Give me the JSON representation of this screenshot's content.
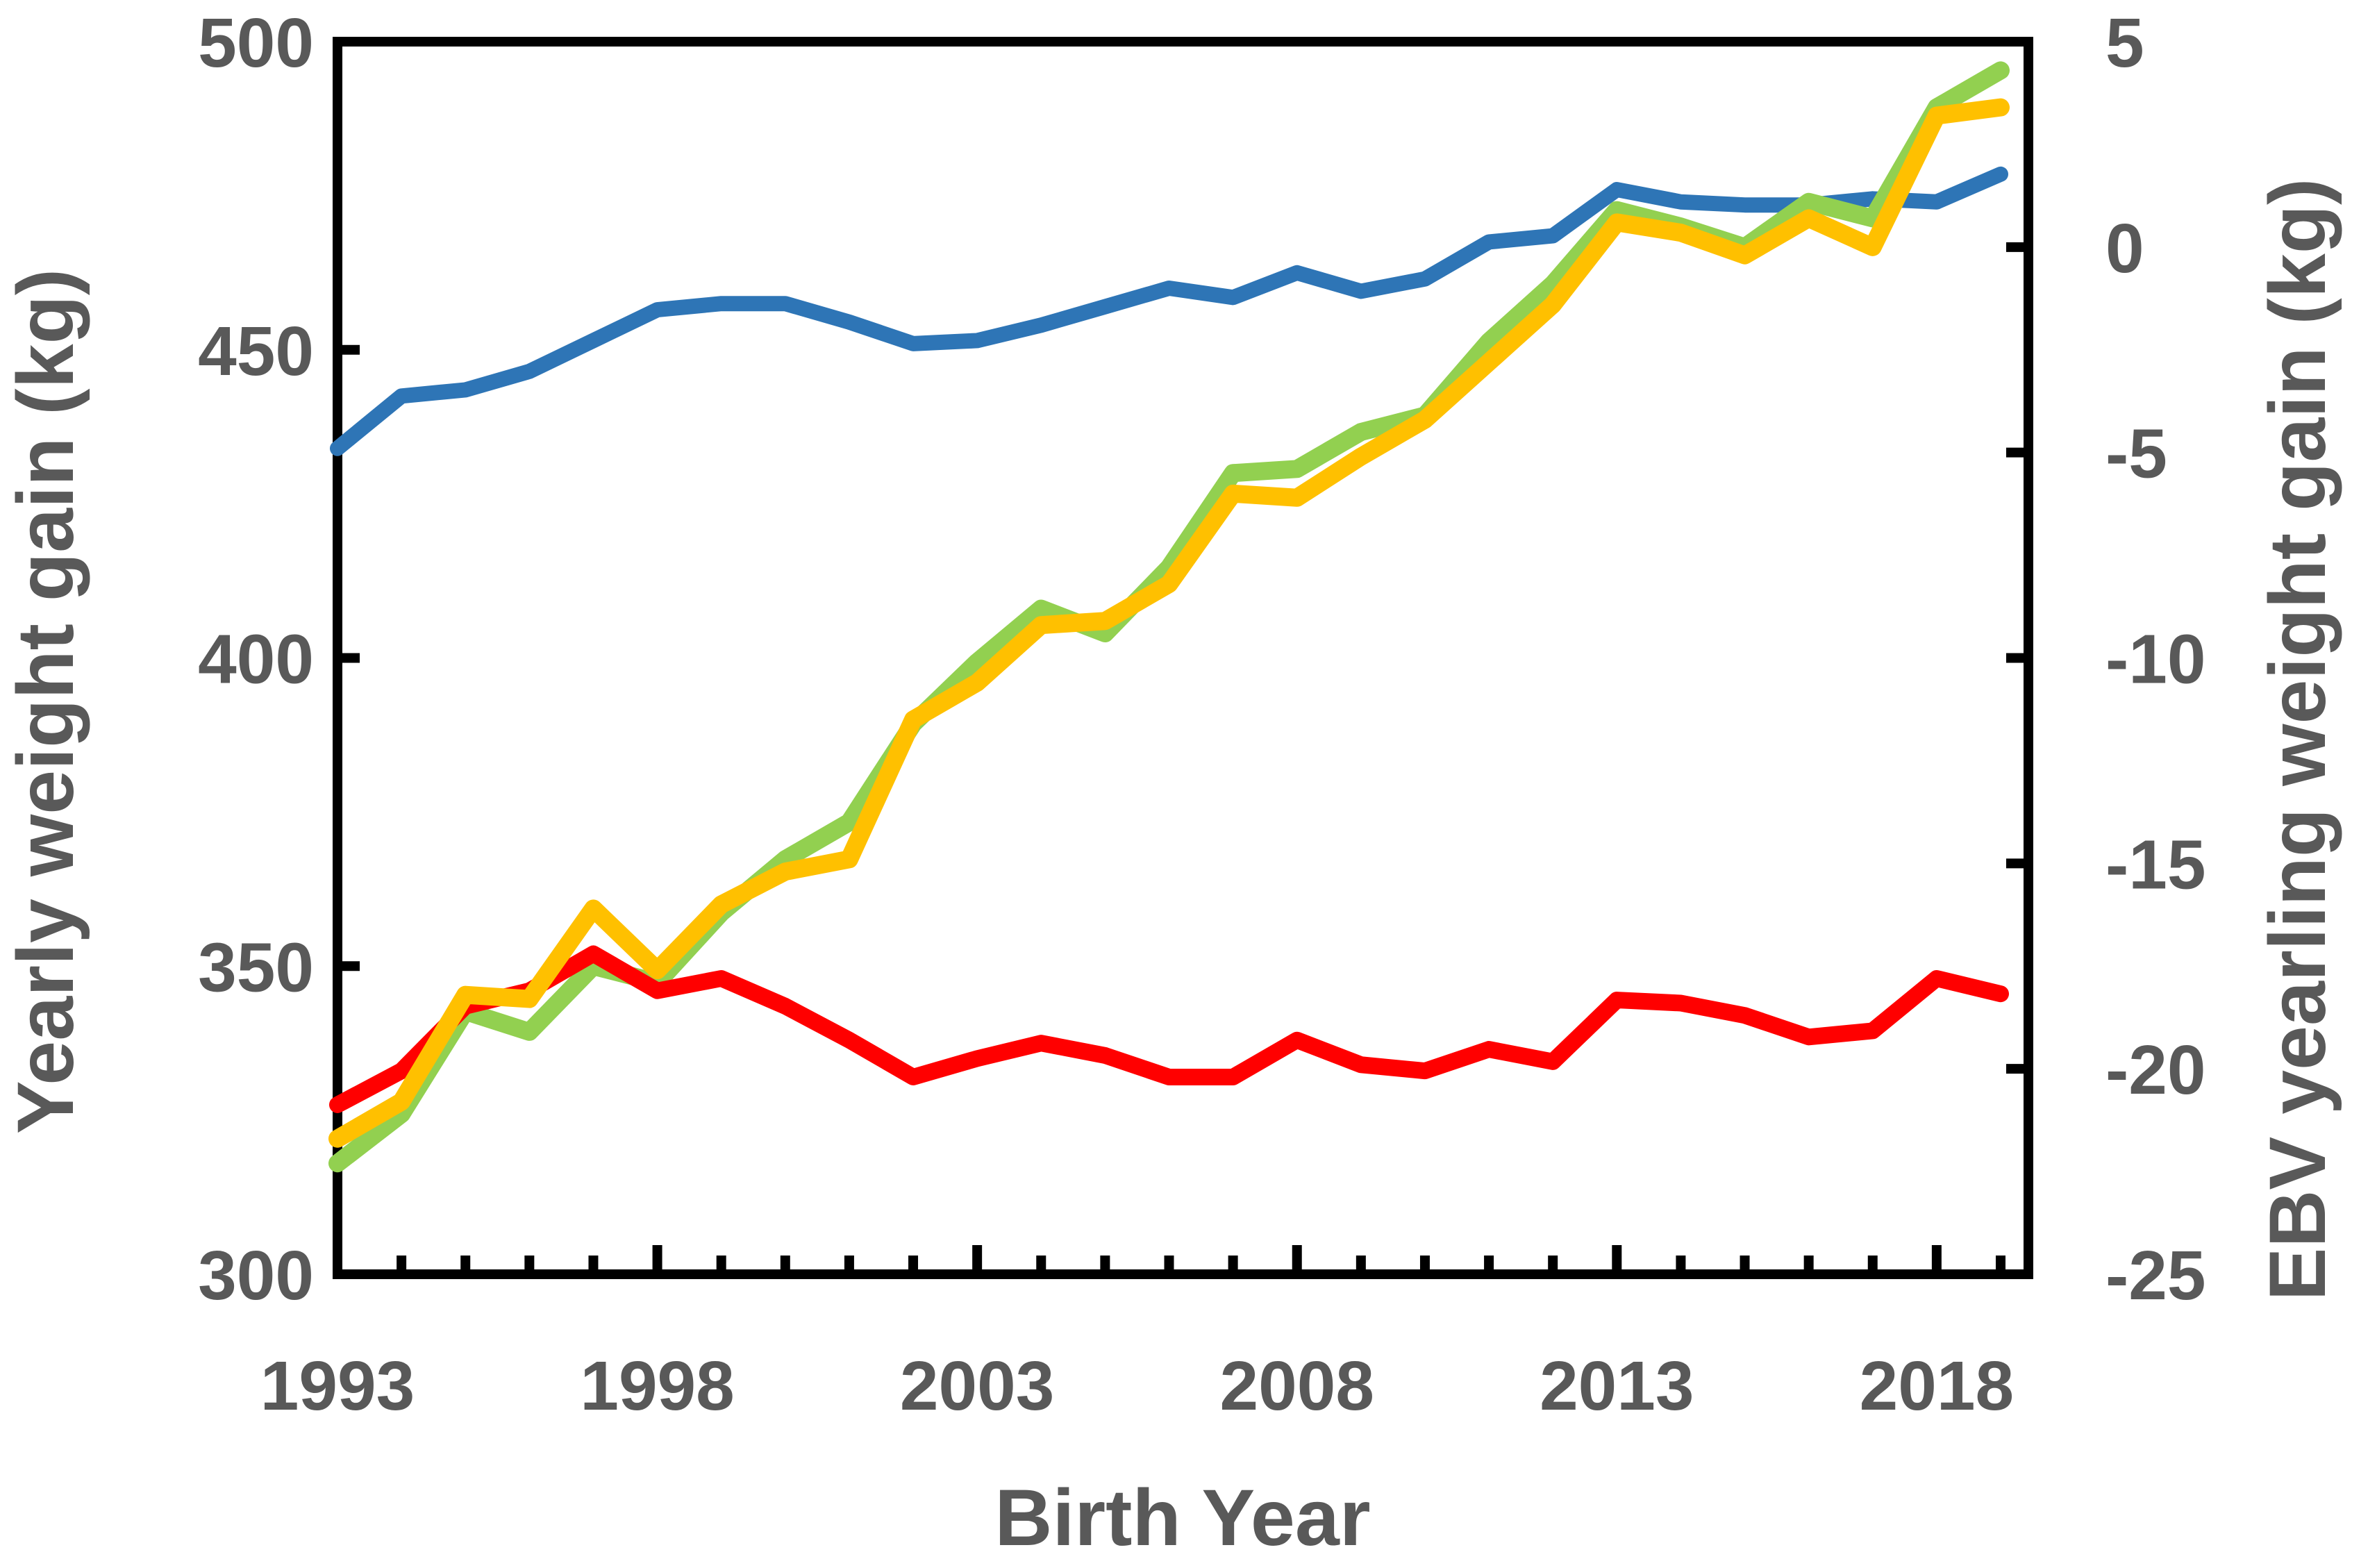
{
  "chart_data": {
    "type": "line",
    "title": "",
    "xlabel": "Birth Year",
    "ylabel_left": "Yearly weight gain (kg)",
    "ylabel_right": "EBV yearling weight gain (kg)",
    "grid": false,
    "legend": false,
    "x": [
      1993,
      1994,
      1995,
      1996,
      1997,
      1998,
      1999,
      2000,
      2001,
      2002,
      2003,
      2004,
      2005,
      2006,
      2007,
      2008,
      2009,
      2010,
      2011,
      2012,
      2013,
      2014,
      2015,
      2016,
      2017,
      2018,
      2019
    ],
    "axes": {
      "left": {
        "min": 300,
        "max": 500,
        "tick_step": 50,
        "tick_labels": [
          "500",
          "450",
          "400",
          "350",
          "300"
        ],
        "tick_values": [
          500,
          450,
          400,
          350,
          300
        ],
        "inner_tick_values": [
          450,
          400,
          350
        ]
      },
      "right": {
        "min": -25,
        "max": 5,
        "tick_step": 5,
        "tick_labels": [
          "5",
          "0",
          "-5",
          "-10",
          "-15",
          "-20",
          "-25"
        ],
        "tick_values": [
          5,
          0,
          -5,
          -10,
          -15,
          -20,
          -25
        ],
        "inner_tick_values": [
          0,
          -5,
          -10,
          -15,
          -20
        ]
      },
      "x": {
        "min": 1993,
        "max": 2019,
        "minor_tick_every": 1,
        "major_tick_values": [
          1998,
          2003,
          2008,
          2013,
          2018
        ],
        "labeled_ticks": [
          1993,
          1998,
          2003,
          2008,
          2013,
          2018
        ],
        "tick_labels": [
          "1993",
          "1998",
          "2003",
          "2008",
          "2013",
          "2018"
        ]
      }
    },
    "series": [
      {
        "name": "blue-line",
        "axis": "left",
        "color": "#2E75B6",
        "stroke_width": 22,
        "values": [
          434,
          442.5,
          443.5,
          446.5,
          451.5,
          456.5,
          457.5,
          457.5,
          454.5,
          451,
          451.5,
          454,
          457,
          460,
          458.5,
          462.5,
          459.5,
          461.5,
          467.5,
          468.5,
          476,
          474,
          473.5,
          473.5,
          474.5,
          474,
          478.5
        ]
      },
      {
        "name": "green-line",
        "axis": "right",
        "color": "#92D050",
        "stroke_width": 26,
        "values": [
          -22.3,
          -21.1,
          -18.6,
          -19.1,
          -17.5,
          -17.9,
          -16.2,
          -14.9,
          -14.0,
          -11.6,
          -10.1,
          -8.8,
          -9.4,
          -7.8,
          -5.5,
          -5.4,
          -4.5,
          -4.1,
          -2.3,
          -0.9,
          0.9,
          0.5,
          0.0,
          1.1,
          0.7,
          3.4,
          4.3
        ]
      },
      {
        "name": "red-line",
        "axis": "left",
        "color": "#FF0000",
        "stroke_width": 24,
        "values": [
          327.5,
          333,
          343.5,
          346,
          352,
          346,
          348,
          343.5,
          338,
          332,
          335,
          337.5,
          335.5,
          332,
          332,
          338,
          334,
          333,
          336.5,
          334.5,
          344.5,
          344,
          342,
          338.5,
          339.5,
          348,
          345.5
        ]
      },
      {
        "name": "yellow-line",
        "axis": "right",
        "color": "#FFC000",
        "stroke_width": 26,
        "values": [
          -21.7,
          -20.8,
          -18.2,
          -18.3,
          -16.1,
          -17.6,
          -16.0,
          -15.2,
          -14.9,
          -11.5,
          -10.6,
          -9.2,
          -9.1,
          -8.2,
          -6.0,
          -6.1,
          -5.1,
          -4.2,
          -2.8,
          -1.4,
          0.6,
          0.35,
          -0.2,
          0.7,
          0.0,
          3.2,
          3.4
        ]
      }
    ],
    "colors": {
      "axis_line": "#000000",
      "label_text": "#595959",
      "background": "#FFFFFF"
    }
  }
}
